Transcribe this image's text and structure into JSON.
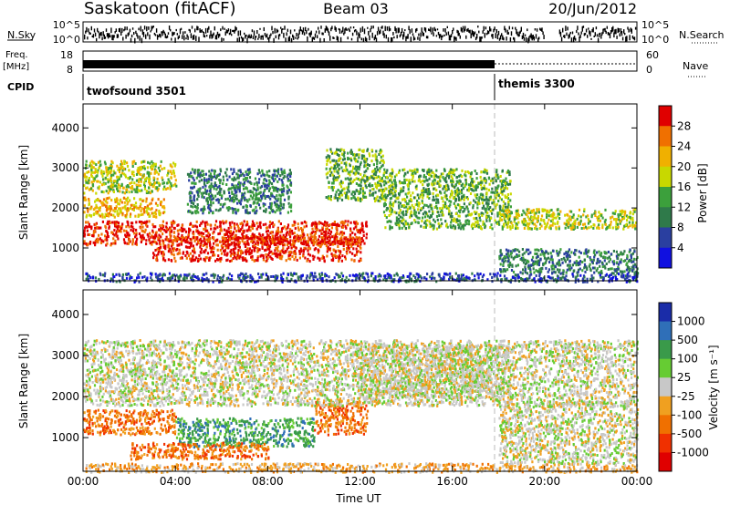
{
  "header": {
    "station": "Saskatoon (fitACF)",
    "beam": "Beam 03",
    "date": "20/Jun/2012"
  },
  "panels": {
    "nsky": {
      "label": "N.Sky",
      "ticks_left": [
        "10^5",
        "10^0"
      ],
      "ticks_right": [
        "10^5",
        "10^0"
      ],
      "right_label": "N.Search"
    },
    "freq": {
      "label_line1": "Freq.",
      "label_line2": "[MHz]",
      "ticks_left": [
        "18",
        "8"
      ],
      "ticks_right": [
        "60",
        "0"
      ],
      "right_label": "Nave",
      "level_mhz": 11.5
    },
    "cpid": {
      "label": "CPID",
      "programs": [
        {
          "name": "twofsound 3501",
          "start_hour": 0
        },
        {
          "name": "themis 3300",
          "start_hour": 18
        }
      ]
    }
  },
  "chart_data": [
    {
      "type": "heatmap",
      "name": "power",
      "xlabel": "",
      "ylabel": "Slant Range [km]",
      "x_range_hours": [
        0,
        24
      ],
      "xticks": [
        "00:00",
        "04:00",
        "08:00",
        "12:00",
        "16:00",
        "20:00",
        "00:00"
      ],
      "ylim": [
        180,
        4600
      ],
      "yticks": [
        1000,
        2000,
        3000,
        4000
      ],
      "colorbar": {
        "label": "Power [dB]",
        "ticks": [
          "28",
          "24",
          "20",
          "16",
          "12",
          "8",
          "4"
        ],
        "colors": [
          "#e00000",
          "#f07000",
          "#f0b000",
          "#c8d800",
          "#3ca03c",
          "#2f7a4a",
          "#2a3fa0",
          "#1010e0"
        ]
      },
      "bands": [
        {
          "t0": 0.0,
          "t1": 12.3,
          "r0": 1100,
          "r1": 1700,
          "level": 7
        },
        {
          "t0": 3.0,
          "t1": 12.0,
          "r0": 700,
          "r1": 1300,
          "level": 7
        },
        {
          "t0": 0.0,
          "t1": 3.5,
          "r0": 1800,
          "r1": 2300,
          "level": 5
        },
        {
          "t0": 0.0,
          "t1": 4.0,
          "r0": 2400,
          "r1": 3200,
          "level": 4
        },
        {
          "t0": 4.5,
          "t1": 9.0,
          "r0": 1900,
          "r1": 3000,
          "level": 2
        },
        {
          "t0": 10.5,
          "t1": 13.0,
          "r0": 2200,
          "r1": 3500,
          "level": 3
        },
        {
          "t0": 13.0,
          "t1": 18.5,
          "r0": 1500,
          "r1": 3000,
          "level": 3
        },
        {
          "t0": 18.0,
          "t1": 24.0,
          "r0": 1500,
          "r1": 2000,
          "level": 4
        },
        {
          "t0": 18.0,
          "t1": 24.0,
          "r0": 400,
          "r1": 1000,
          "level": 2
        },
        {
          "t0": 0.0,
          "t1": 24.0,
          "r0": 180,
          "r1": 400,
          "level": 1
        }
      ]
    },
    {
      "type": "heatmap",
      "name": "velocity",
      "xlabel": "Time UT",
      "ylabel": "Slant Range [km]",
      "x_range_hours": [
        0,
        24
      ],
      "xticks": [
        "00:00",
        "04:00",
        "08:00",
        "12:00",
        "16:00",
        "20:00",
        "00:00"
      ],
      "ylim": [
        180,
        4600
      ],
      "yticks": [
        1000,
        2000,
        3000,
        4000
      ],
      "colorbar": {
        "label": "Velocity [m s⁻¹]",
        "ticks": [
          "1000",
          "500",
          "100",
          "25",
          "-25",
          "-100",
          "-500",
          "-1000"
        ],
        "colors": [
          "#1a2ca8",
          "#2f6fb8",
          "#3a9a4a",
          "#66cc33",
          "#c8c8c8",
          "#f0a020",
          "#f07000",
          "#f03000",
          "#e00000"
        ]
      },
      "bands": [
        {
          "t0": 0.0,
          "t1": 4.0,
          "r0": 1100,
          "r1": 1700,
          "level": 6
        },
        {
          "t0": 4.0,
          "t1": 10.0,
          "r0": 800,
          "r1": 1500,
          "level": 2
        },
        {
          "t0": 10.0,
          "t1": 12.3,
          "r0": 1100,
          "r1": 1900,
          "level": 6
        },
        {
          "t0": 0.0,
          "t1": 24.0,
          "r0": 1800,
          "r1": 3400,
          "level": 4
        },
        {
          "t0": 12.0,
          "t1": 18.5,
          "r0": 2000,
          "r1": 3300,
          "level": 4
        },
        {
          "t0": 18.0,
          "t1": 24.0,
          "r0": 400,
          "r1": 1900,
          "level": 4
        },
        {
          "t0": 2.0,
          "t1": 8.0,
          "r0": 500,
          "r1": 900,
          "level": 6
        },
        {
          "t0": 0.0,
          "t1": 24.0,
          "r0": 180,
          "r1": 400,
          "level": 5
        }
      ]
    }
  ]
}
